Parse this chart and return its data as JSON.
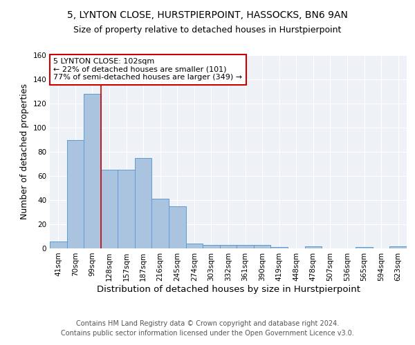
{
  "title": "5, LYNTON CLOSE, HURSTPIERPOINT, HASSOCKS, BN6 9AN",
  "subtitle": "Size of property relative to detached houses in Hurstpierpoint",
  "xlabel": "Distribution of detached houses by size in Hurstpierpoint",
  "ylabel": "Number of detached properties",
  "bin_labels": [
    "41sqm",
    "70sqm",
    "99sqm",
    "128sqm",
    "157sqm",
    "187sqm",
    "216sqm",
    "245sqm",
    "274sqm",
    "303sqm",
    "332sqm",
    "361sqm",
    "390sqm",
    "419sqm",
    "448sqm",
    "478sqm",
    "507sqm",
    "536sqm",
    "565sqm",
    "594sqm",
    "623sqm"
  ],
  "bar_heights": [
    6,
    90,
    128,
    65,
    65,
    75,
    41,
    35,
    4,
    3,
    3,
    3,
    3,
    1,
    0,
    2,
    0,
    0,
    1,
    0,
    2
  ],
  "bar_color": "#aac4e0",
  "bar_edge_color": "#5b9bd5",
  "annotation_text_line1": "5 LYNTON CLOSE: 102sqm",
  "annotation_text_line2": "← 22% of detached houses are smaller (101)",
  "annotation_text_line3": "77% of semi-detached houses are larger (349) →",
  "annotation_box_color": "#ffffff",
  "annotation_box_edge": "#cc0000",
  "vline_color": "#cc0000",
  "footer_line1": "Contains HM Land Registry data © Crown copyright and database right 2024.",
  "footer_line2": "Contains public sector information licensed under the Open Government Licence v3.0.",
  "bg_color": "#eef2f7",
  "ylim": [
    0,
    160
  ],
  "title_fontsize": 10,
  "subtitle_fontsize": 9,
  "axis_label_fontsize": 9,
  "tick_fontsize": 7.5,
  "footer_fontsize": 7,
  "annotation_fontsize": 8
}
